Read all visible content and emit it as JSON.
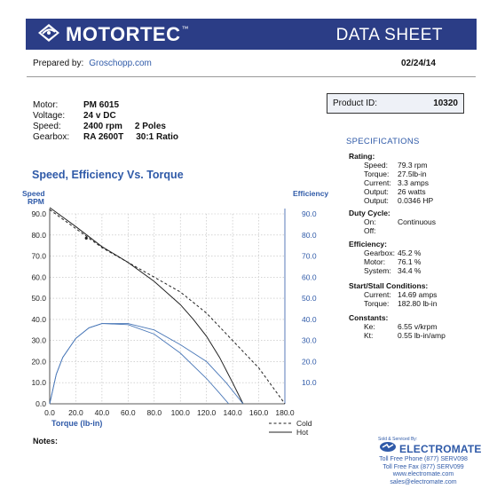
{
  "header": {
    "brand": "MOTORTEC",
    "brand_tm": "™",
    "title": "DATA SHEET",
    "header_color": "#2b3d86"
  },
  "prepared": {
    "label": "Prepared by:",
    "value": "Groschopp.com"
  },
  "date": "02/24/14",
  "motor_info": [
    {
      "key": "Motor:",
      "value": "PM 6015",
      "extra": ""
    },
    {
      "key": "Voltage:",
      "value": "24 v DC",
      "extra": ""
    },
    {
      "key": "Speed:",
      "value": "2400 rpm",
      "extra": "2 Poles"
    },
    {
      "key": "Gearbox:",
      "value": "RA 2600T",
      "extra": "30:1 Ratio"
    }
  ],
  "product": {
    "label": "Product ID:",
    "value": "10320"
  },
  "specs": {
    "title": "SPECIFICATIONS",
    "rating": {
      "heading": "Rating:",
      "rows": [
        {
          "k": "Speed:",
          "v": "79.3 rpm"
        },
        {
          "k": "Torque:",
          "v": "27.5lb-in"
        },
        {
          "k": "Current:",
          "v": "3.3 amps"
        },
        {
          "k": "Output:",
          "v": "26 watts"
        },
        {
          "k": "Output:",
          "v": "0.0346 HP"
        }
      ]
    },
    "duty": {
      "heading": "Duty Cycle:",
      "rows": [
        {
          "k": "On:",
          "v": "Continuous"
        },
        {
          "k": "Off:",
          "v": ""
        }
      ]
    },
    "efficiency": {
      "heading": "Efficiency:",
      "rows": [
        {
          "k": "Gearbox:",
          "v": "45.2 %"
        },
        {
          "k": "Motor:",
          "v": "76.1 %"
        },
        {
          "k": "System:",
          "v": "34.4 %"
        }
      ]
    },
    "stall": {
      "heading": "Start/Stall Conditions:",
      "rows": [
        {
          "k": "Current:",
          "v": "14.69 amps"
        },
        {
          "k": "Torque:",
          "v": "182.80 lb-in"
        }
      ]
    },
    "constants": {
      "heading": "Constants:",
      "rows": [
        {
          "k": "Ke:",
          "v": "6.55 v/krpm"
        },
        {
          "k": "Kt:",
          "v": "0.55 lb-in/amp"
        }
      ]
    }
  },
  "chart_data": {
    "type": "line",
    "title": "Speed, Efficiency Vs. Torque",
    "ylabel_left": [
      "Speed",
      "RPM"
    ],
    "ylabel_right": "Efficiency",
    "xlabel": "Torque (lb-in)",
    "xlim": [
      0,
      180
    ],
    "ylim": [
      0,
      90
    ],
    "x_ticks": [
      "0.0",
      "20.0",
      "40.0",
      "60.0",
      "80.0",
      "100.0",
      "120.0",
      "140.0",
      "160.0",
      "180.0"
    ],
    "y_ticks_left": [
      "0.0",
      "10.0",
      "20.0",
      "30.0",
      "40.0",
      "50.0",
      "60.0",
      "70.0",
      "80.0",
      "90.0"
    ],
    "y_ticks_right": [
      "10.0",
      "20.0",
      "30.0",
      "40.0",
      "50.0",
      "60.0",
      "70.0",
      "80.0",
      "90.0"
    ],
    "legend": [
      {
        "name": "Cold",
        "style": "dashed"
      },
      {
        "name": "Hot",
        "style": "solid"
      }
    ],
    "legend_placement": "bottom-right",
    "series": [
      {
        "name": "Cold",
        "kind": "speed",
        "color": "#222222",
        "dash": true,
        "points": [
          [
            0,
            92
          ],
          [
            20,
            83
          ],
          [
            40,
            74
          ],
          [
            60,
            67
          ],
          [
            80,
            60
          ],
          [
            100,
            53
          ],
          [
            120,
            43
          ],
          [
            140,
            30
          ],
          [
            160,
            17
          ],
          [
            180,
            0
          ]
        ]
      },
      {
        "name": "Hot",
        "kind": "speed",
        "color": "#222222",
        "dash": false,
        "points": [
          [
            0,
            93
          ],
          [
            20,
            84
          ],
          [
            40,
            74.5
          ],
          [
            60,
            67
          ],
          [
            80,
            58
          ],
          [
            100,
            47
          ],
          [
            110,
            40
          ],
          [
            120,
            32
          ],
          [
            130,
            22
          ],
          [
            140,
            10
          ],
          [
            148,
            0
          ]
        ]
      },
      {
        "name": "Cold",
        "kind": "efficiency",
        "color": "#4a78b8",
        "dash": false,
        "points": [
          [
            0,
            0
          ],
          [
            5,
            14
          ],
          [
            10,
            22
          ],
          [
            20,
            31
          ],
          [
            30,
            36
          ],
          [
            40,
            38
          ],
          [
            60,
            38
          ],
          [
            80,
            35
          ],
          [
            100,
            28
          ],
          [
            120,
            20
          ],
          [
            135,
            10
          ],
          [
            148,
            0
          ]
        ]
      },
      {
        "name": "Hot",
        "kind": "efficiency",
        "color": "#4a78b8",
        "dash": false,
        "points": [
          [
            0,
            0
          ],
          [
            5,
            14
          ],
          [
            10,
            22
          ],
          [
            20,
            31
          ],
          [
            30,
            36
          ],
          [
            40,
            38
          ],
          [
            60,
            37.5
          ],
          [
            80,
            33
          ],
          [
            100,
            24
          ],
          [
            120,
            12
          ],
          [
            130,
            5
          ],
          [
            137,
            0
          ]
        ]
      }
    ],
    "marker": {
      "x": 28,
      "y": 78.5
    }
  },
  "notes_label": "Notes:",
  "distributor": {
    "sold_by": "Sold & Serviced By:",
    "name": "ELECTROMATE",
    "lines": [
      "Toll Free Phone (877) SERV098",
      "Toll Free Fax (877) SERV099",
      "www.electromate.com",
      "sales@electromate.com"
    ],
    "color": "#2f5aa8"
  }
}
